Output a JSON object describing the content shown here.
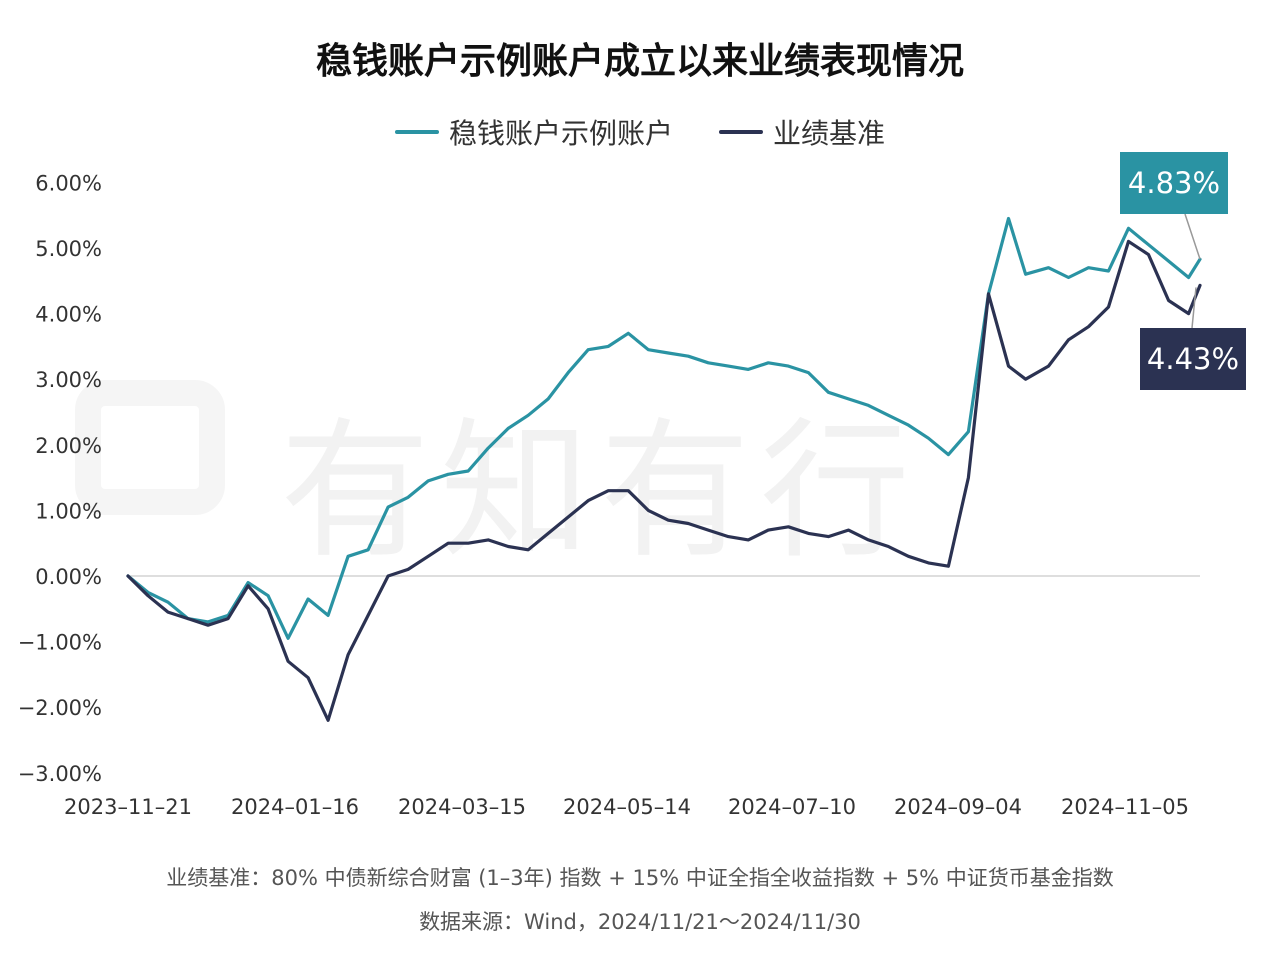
{
  "title": "稳钱账户示例账户成立以来业绩表现情况",
  "legend": [
    {
      "label": "稳钱账户示例账户",
      "color": "#2a93a3"
    },
    {
      "label": "业绩基准",
      "color": "#2b3252"
    }
  ],
  "watermark": "有知有行",
  "callouts": {
    "account": {
      "label": "4.83%",
      "color": "#2a93a3"
    },
    "benchmark": {
      "label": "4.43%",
      "color": "#2b3252"
    }
  },
  "notes": {
    "benchmark_def": "业绩基准：80% 中债新综合财富 (1–3年) 指数 + 15% 中证全指全收益指数 + 5% 中证货币基金指数",
    "source": "数据来源：Wind，2024/11/21～2024/11/30"
  },
  "chart_data": {
    "type": "line",
    "title": "稳钱账户示例账户成立以来业绩表现情况",
    "y_ticks": [
      "6.00%",
      "5.00%",
      "4.00%",
      "3.00%",
      "2.00%",
      "1.00%",
      "0.00%",
      "−1.00%",
      "−2.00%",
      "−3.00%"
    ],
    "x_ticks": [
      "2023–11–21",
      "2024–01–16",
      "2024–03–15",
      "2024–05–14",
      "2024–07–10",
      "2024–09–04",
      "2024–11–05"
    ],
    "ylim": [
      -3,
      6
    ],
    "x": [
      "2023-11-21",
      "2023-11-28",
      "2023-12-05",
      "2023-12-12",
      "2023-12-19",
      "2023-12-26",
      "2024-01-02",
      "2024-01-09",
      "2024-01-16",
      "2024-01-23",
      "2024-01-30",
      "2024-02-06",
      "2024-02-13",
      "2024-02-20",
      "2024-02-27",
      "2024-03-05",
      "2024-03-12",
      "2024-03-19",
      "2024-03-26",
      "2024-04-02",
      "2024-04-09",
      "2024-04-16",
      "2024-04-23",
      "2024-04-30",
      "2024-05-07",
      "2024-05-14",
      "2024-05-21",
      "2024-05-28",
      "2024-06-04",
      "2024-06-11",
      "2024-06-18",
      "2024-06-25",
      "2024-07-02",
      "2024-07-09",
      "2024-07-16",
      "2024-07-23",
      "2024-07-30",
      "2024-08-06",
      "2024-08-13",
      "2024-08-20",
      "2024-08-27",
      "2024-09-03",
      "2024-09-10",
      "2024-09-17",
      "2024-09-24",
      "2024-09-30",
      "2024-10-08",
      "2024-10-15",
      "2024-10-22",
      "2024-10-29",
      "2024-11-05",
      "2024-11-12",
      "2024-11-19",
      "2024-11-26",
      "2024-11-30"
    ],
    "series": [
      {
        "name": "稳钱账户示例账户",
        "color": "#2a93a3",
        "values": [
          0.0,
          -0.25,
          -0.4,
          -0.65,
          -0.7,
          -0.6,
          -0.1,
          -0.3,
          -0.95,
          -0.35,
          -0.6,
          0.3,
          0.4,
          1.05,
          1.2,
          1.45,
          1.55,
          1.6,
          1.95,
          2.25,
          2.45,
          2.7,
          3.1,
          3.45,
          3.5,
          3.7,
          3.45,
          3.4,
          3.35,
          3.25,
          3.2,
          3.15,
          3.25,
          3.2,
          3.1,
          2.8,
          2.7,
          2.6,
          2.45,
          2.3,
          2.1,
          1.85,
          2.2,
          4.3,
          5.45,
          4.6,
          4.7,
          4.55,
          4.7,
          4.65,
          5.3,
          5.05,
          4.8,
          4.55,
          4.83
        ]
      },
      {
        "name": "业绩基准",
        "color": "#2b3252",
        "values": [
          0.0,
          -0.3,
          -0.55,
          -0.65,
          -0.75,
          -0.65,
          -0.15,
          -0.5,
          -1.3,
          -1.55,
          -2.2,
          -1.2,
          -0.6,
          0.0,
          0.1,
          0.3,
          0.5,
          0.5,
          0.55,
          0.45,
          0.4,
          0.65,
          0.9,
          1.15,
          1.3,
          1.3,
          1.0,
          0.85,
          0.8,
          0.7,
          0.6,
          0.55,
          0.7,
          0.75,
          0.65,
          0.6,
          0.7,
          0.55,
          0.45,
          0.3,
          0.2,
          0.15,
          1.5,
          4.3,
          3.2,
          3.0,
          3.2,
          3.6,
          3.8,
          4.1,
          5.1,
          4.9,
          4.2,
          4.0,
          4.43
        ]
      }
    ]
  }
}
